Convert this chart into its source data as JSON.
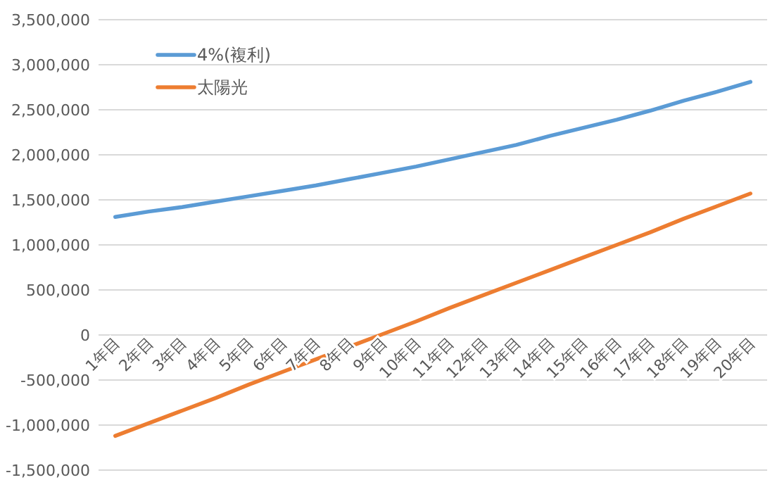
{
  "chart_data": {
    "type": "line",
    "categories": [
      "1年目",
      "2年目",
      "3年目",
      "4年目",
      "5年目",
      "6年目",
      "7年目",
      "8年目",
      "9年目",
      "10年目",
      "11年目",
      "12年目",
      "13年目",
      "14年目",
      "15年目",
      "16年目",
      "17年目",
      "18年目",
      "19年目",
      "20年目"
    ],
    "series": [
      {
        "name": "4%(複利)",
        "color": "#5b9bd5",
        "values": [
          1310000,
          1370000,
          1420000,
          1480000,
          1540000,
          1600000,
          1660000,
          1730000,
          1800000,
          1870000,
          1950000,
          2030000,
          2110000,
          2210000,
          2300000,
          2390000,
          2490000,
          2600000,
          2700000,
          2810000
        ]
      },
      {
        "name": "太陽光",
        "color": "#ed7d31",
        "values": [
          -1120000,
          -980000,
          -840000,
          -700000,
          -550000,
          -410000,
          -270000,
          -130000,
          10000,
          150000,
          300000,
          440000,
          580000,
          720000,
          860000,
          1000000,
          1140000,
          1290000,
          1430000,
          1570000
        ]
      }
    ],
    "ylim": [
      -1500000,
      3500000
    ],
    "yticks": [
      {
        "value": -1500000,
        "label": "-1,500,000"
      },
      {
        "value": -1000000,
        "label": "-1,000,000"
      },
      {
        "value": -500000,
        "label": "-500,000"
      },
      0,
      {
        "value": 500000,
        "label": "500,000"
      },
      {
        "value": 1000000,
        "label": "1,000,000"
      },
      {
        "value": 1500000,
        "label": "1,500,000"
      },
      {
        "value": 2000000,
        "label": "2,000,000"
      },
      {
        "value": 2500000,
        "label": "2,500,000"
      },
      {
        "value": 3000000,
        "label": "3,000,000"
      },
      {
        "value": 3500000,
        "label": "3,500,000"
      }
    ],
    "grid": "y",
    "legend": "top left",
    "marker": "none",
    "line_style": "solid"
  }
}
